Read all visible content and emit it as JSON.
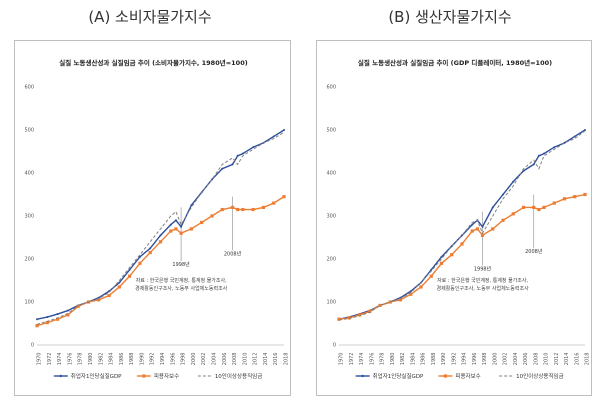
{
  "panels": [
    {
      "heading": "(A) 소비자물가지수",
      "chart_title": "실질 노동생산성과 실질임금 추이 (소비자물가지수, 1980년=100)",
      "note_lines": [
        "자료 : 한국은행 국민계정, 통계청 물가조사,",
        "경제활동인구조사, 노동부 사업체노동력조사"
      ],
      "annotations": [
        {
          "text": "1998년",
          "x": 1998,
          "y": 200
        },
        {
          "text": "2008년",
          "x": 2008,
          "y": 225
        }
      ]
    },
    {
      "heading": "(B) 생산자물가지수",
      "chart_title": "실질 노동생산성과 실질임금 추이 (GDP 디플레이터, 1980년=100)",
      "note_lines": [
        "자료 : 한국은행 국민계정, 통계청 물가조사,",
        "경제활동인구조사, 노동부 사업체노동력조사"
      ],
      "annotations": [
        {
          "text": "1998년",
          "x": 1998,
          "y": 190
        },
        {
          "text": "2008년",
          "x": 2008,
          "y": 230
        }
      ]
    }
  ],
  "colors": {
    "gdp": "#2e4f9e",
    "comp": "#ed7d31",
    "wage": "#7f7f7f",
    "grid": "#e6e6e6",
    "axis": "#bfbfbf"
  },
  "chart_data": [
    {
      "type": "line",
      "title": "실질 노동생산성과 실질임금 추이 (소비자물가지수, 1980년=100)",
      "x_ticks": [
        "1970",
        "1972",
        "1974",
        "1976",
        "1978",
        "1980",
        "1982",
        "1984",
        "1986",
        "1988",
        "1990",
        "1992",
        "1994",
        "1996",
        "1998",
        "2000",
        "2002",
        "2004",
        "2006",
        "2008",
        "2010",
        "2012",
        "2014",
        "2016",
        "2018"
      ],
      "y_ticks": [
        "0",
        "100",
        "200",
        "300",
        "400",
        "500",
        "600"
      ],
      "xlim": [
        1970,
        2018
      ],
      "ylim": [
        0,
        600
      ],
      "grid": false,
      "legend": "bottom",
      "x": [
        1970,
        1972,
        1974,
        1976,
        1978,
        1980,
        1982,
        1984,
        1986,
        1988,
        1990,
        1992,
        1994,
        1996,
        1997,
        1998,
        2000,
        2002,
        2004,
        2006,
        2008,
        2009,
        2010,
        2012,
        2014,
        2016,
        2018
      ],
      "series": [
        {
          "name": "취업자1인당실질GDP",
          "key": "gdp",
          "style": "solid-marker",
          "values": [
            60,
            65,
            72,
            80,
            92,
            100,
            110,
            125,
            145,
            175,
            205,
            225,
            255,
            280,
            290,
            275,
            325,
            355,
            385,
            410,
            420,
            440,
            445,
            460,
            470,
            485,
            500
          ]
        },
        {
          "name": "피용자보수",
          "key": "comp",
          "style": "square-marker",
          "values": [
            45,
            52,
            60,
            70,
            90,
            100,
            105,
            115,
            135,
            160,
            190,
            215,
            240,
            265,
            270,
            260,
            270,
            285,
            300,
            315,
            320,
            315,
            315,
            315,
            320,
            330,
            345
          ]
        },
        {
          "name": "10인이상상용직임금",
          "key": "wage",
          "style": "dashed",
          "values": [
            48,
            55,
            63,
            73,
            92,
            100,
            108,
            122,
            150,
            180,
            210,
            240,
            270,
            300,
            310,
            280,
            320,
            355,
            385,
            420,
            435,
            420,
            440,
            455,
            470,
            480,
            495
          ]
        }
      ]
    },
    {
      "type": "line",
      "title": "실질 노동생산성과 실질임금 추이 (GDP 디플레이터, 1980년=100)",
      "x_ticks": [
        "1970",
        "1972",
        "1974",
        "1976",
        "1978",
        "1980",
        "1982",
        "1984",
        "1986",
        "1988",
        "1990",
        "1992",
        "1994",
        "1996",
        "1998",
        "2000",
        "2002",
        "2004",
        "2006",
        "2008",
        "2010",
        "2012",
        "2014",
        "2016",
        "2018"
      ],
      "y_ticks": [
        "0",
        "100",
        "200",
        "300",
        "400",
        "500",
        "600"
      ],
      "xlim": [
        1970,
        2018
      ],
      "ylim": [
        0,
        600
      ],
      "grid": false,
      "legend": "bottom",
      "x": [
        1970,
        1972,
        1974,
        1976,
        1978,
        1980,
        1982,
        1984,
        1986,
        1988,
        1990,
        1992,
        1994,
        1996,
        1997,
        1998,
        2000,
        2002,
        2004,
        2006,
        2008,
        2009,
        2010,
        2012,
        2014,
        2016,
        2018
      ],
      "series": [
        {
          "name": "취업자1인당실질GDP",
          "key": "gdp",
          "style": "solid-marker",
          "values": [
            60,
            65,
            72,
            80,
            92,
            100,
            110,
            125,
            145,
            175,
            205,
            230,
            255,
            280,
            290,
            275,
            320,
            350,
            380,
            405,
            420,
            440,
            445,
            460,
            470,
            485,
            500
          ]
        },
        {
          "name": "피용자보수",
          "key": "comp",
          "style": "square-marker",
          "values": [
            60,
            63,
            70,
            78,
            92,
            100,
            105,
            118,
            135,
            160,
            190,
            210,
            235,
            265,
            270,
            255,
            270,
            290,
            305,
            320,
            320,
            315,
            320,
            330,
            340,
            345,
            350
          ]
        },
        {
          "name": "10인이상상용직임금",
          "key": "wage",
          "style": "dashed",
          "values": [
            58,
            62,
            68,
            76,
            92,
            100,
            108,
            122,
            145,
            172,
            200,
            230,
            255,
            285,
            290,
            260,
            300,
            340,
            370,
            410,
            430,
            410,
            440,
            455,
            470,
            480,
            498
          ]
        }
      ]
    }
  ]
}
